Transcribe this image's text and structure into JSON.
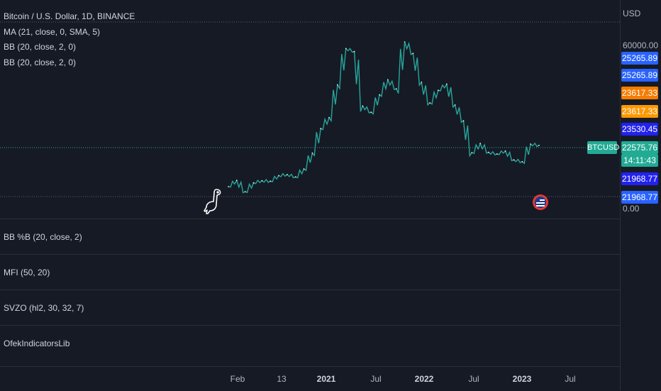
{
  "legend": {
    "title": "Bitcoin / U.S. Dollar, 1D, BINANCE",
    "indicators": [
      "MA (21, close, 0, SMA, 5)",
      "BB (20, close, 2, 0)",
      "BB (20, close, 2, 0)"
    ]
  },
  "panes": [
    "BB %B (20, close, 2)",
    "MFI (50, 20)",
    "SVZO (hl2, 30, 32, 7)",
    "OfekIndicatorsLib"
  ],
  "axis": {
    "currency": "USD",
    "top_label": "60000.00",
    "bottom_label": "0.00"
  },
  "symbol_tag": "BTCUSD",
  "countdown": "14:11:43",
  "price_tags": [
    {
      "value": "25265.89",
      "color": "#2962ff"
    },
    {
      "value": "25265.89",
      "color": "#2962ff"
    },
    {
      "value": "23617.33",
      "color": "#f57c00"
    },
    {
      "value": "23617.33",
      "color": "#ff9800"
    },
    {
      "value": "23530.45",
      "color": "#2222ee"
    },
    {
      "value": "22575.76",
      "color": "#22ab94"
    },
    {
      "value": "21968.77",
      "color": "#2222ee"
    },
    {
      "value": "21968.77",
      "color": "#2962ff"
    }
  ],
  "colors": {
    "line": "#26a69a",
    "background": "#161a25"
  },
  "chart_data": {
    "type": "line",
    "title": "Bitcoin / U.S. Dollar, 1D, BINANCE",
    "ylabel": "USD",
    "ylim": [
      0,
      69000
    ],
    "x_ticks": [
      "Feb",
      "13",
      "2021",
      "Jul",
      "2022",
      "Jul",
      "2023",
      "Jul"
    ],
    "series": [
      {
        "name": "BTCUSD",
        "x": [
          "2020-01",
          "2020-02",
          "2020-03",
          "2020-04",
          "2020-05",
          "2020-06",
          "2020-07",
          "2020-08",
          "2020-09",
          "2020-10",
          "2020-11",
          "2020-12",
          "2021-01",
          "2021-02",
          "2021-03",
          "2021-04",
          "2021-05",
          "2021-06",
          "2021-07",
          "2021-08",
          "2021-09",
          "2021-10",
          "2021-11",
          "2021-12",
          "2022-01",
          "2022-02",
          "2022-03",
          "2022-04",
          "2022-05",
          "2022-06",
          "2022-07",
          "2022-08",
          "2022-09",
          "2022-10",
          "2022-11",
          "2022-12",
          "2023-01",
          "2023-02"
        ],
        "y": [
          7200,
          9500,
          5300,
          8600,
          9400,
          9200,
          11300,
          11700,
          10800,
          13800,
          19700,
          28900,
          33000,
          45200,
          58800,
          57700,
          37300,
          35000,
          41500,
          47100,
          43800,
          61300,
          57000,
          46200,
          38500,
          43200,
          45500,
          37700,
          31800,
          19900,
          23300,
          20000,
          19400,
          20500,
          17200,
          16500,
          23100,
          22600
        ]
      }
    ]
  }
}
